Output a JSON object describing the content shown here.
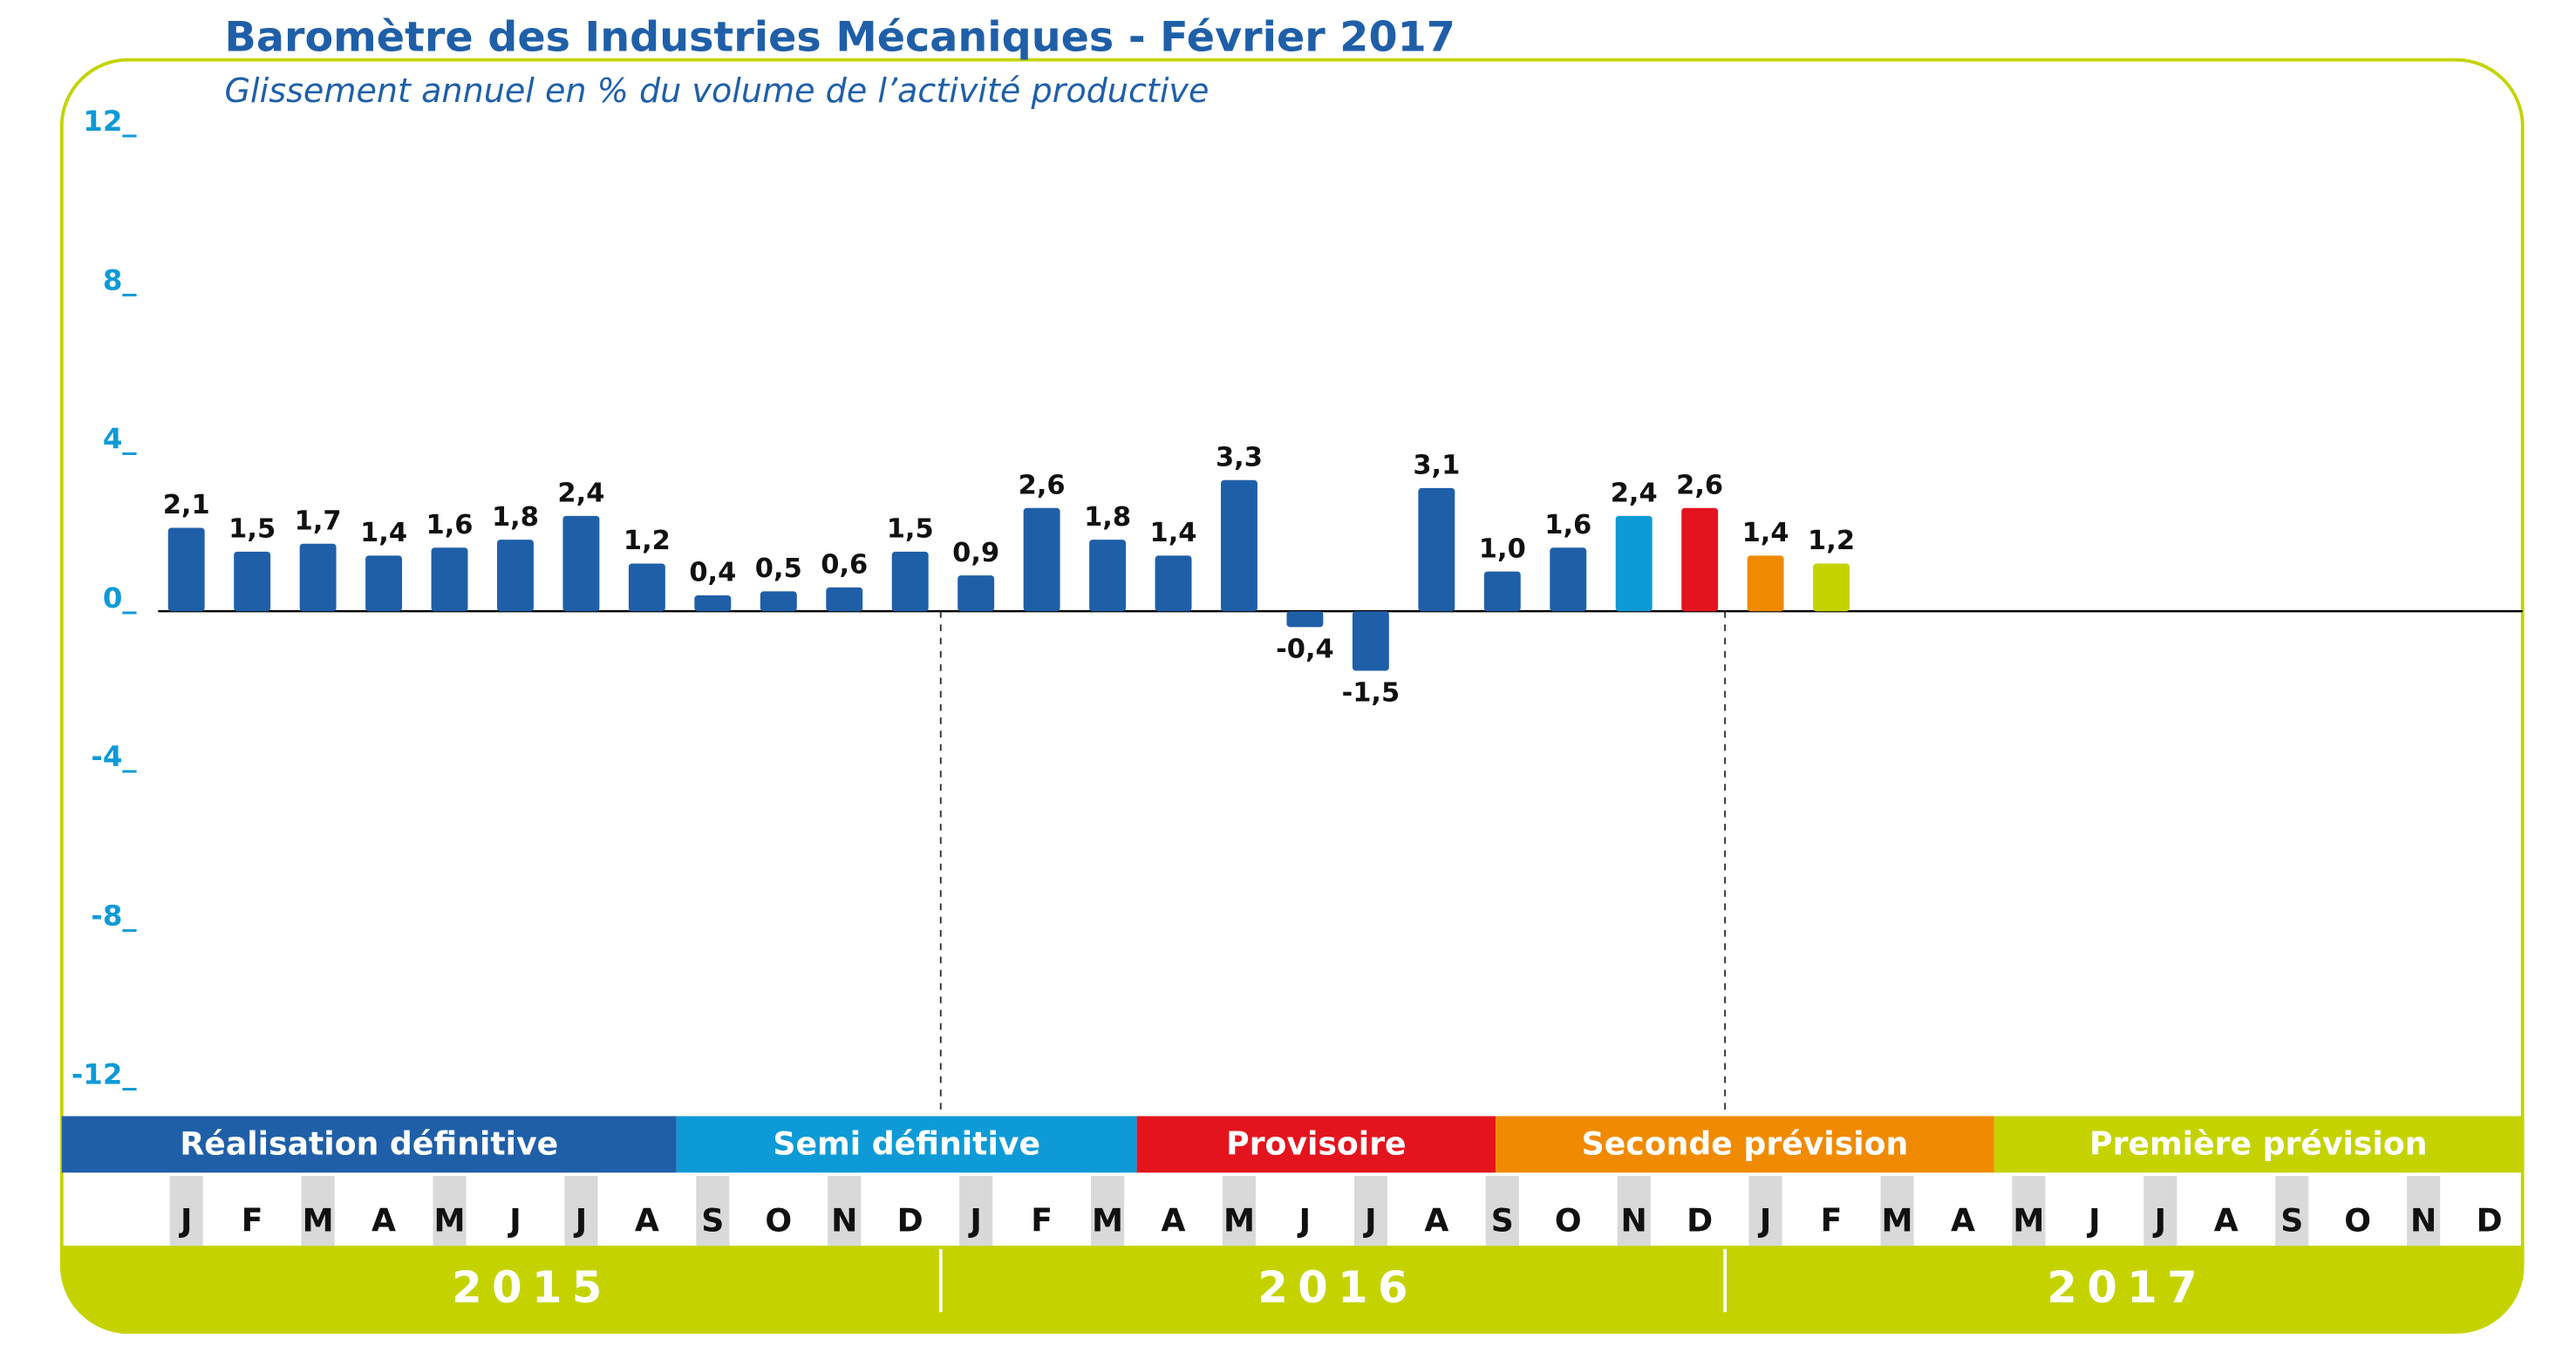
{
  "chart_data": {
    "type": "bar",
    "title": "Baromètre des Industries Mécaniques - Février 2017",
    "subtitle": "Glissement annuel en % du volume de l’activité productive",
    "categories": [
      "J",
      "F",
      "M",
      "A",
      "M",
      "J",
      "J",
      "A",
      "S",
      "O",
      "N",
      "D",
      "J",
      "F",
      "M",
      "A",
      "M",
      "J",
      "J",
      "A",
      "S",
      "O",
      "N",
      "D",
      "J",
      "F",
      "M",
      "A",
      "M",
      "J",
      "J",
      "A",
      "S",
      "O",
      "N",
      "D"
    ],
    "values": [
      2.1,
      1.5,
      1.7,
      1.4,
      1.6,
      1.8,
      2.4,
      1.2,
      0.4,
      0.5,
      0.6,
      1.5,
      0.9,
      2.6,
      1.8,
      1.4,
      3.3,
      -0.4,
      -1.5,
      3.1,
      1.0,
      1.6,
      2.4,
      2.6,
      1.4,
      1.2,
      null,
      null,
      null,
      null,
      null,
      null,
      null,
      null,
      null,
      null
    ],
    "value_labels": [
      "2,1",
      "1,5",
      "1,7",
      "1,4",
      "1,6",
      "1,8",
      "2,4",
      "1,2",
      "0,4",
      "0,5",
      "0,6",
      "1,5",
      "0,9",
      "2,6",
      "1,8",
      "1,4",
      "3,3",
      "-0,4",
      "-1,5",
      "3,1",
      "1,0",
      "1,6",
      "2,4",
      "2,6",
      "1,4",
      "1,2",
      null,
      null,
      null,
      null,
      null,
      null,
      null,
      null,
      null,
      null
    ],
    "colors": [
      "#1f5fa8",
      "#1f5fa8",
      "#1f5fa8",
      "#1f5fa8",
      "#1f5fa8",
      "#1f5fa8",
      "#1f5fa8",
      "#1f5fa8",
      "#1f5fa8",
      "#1f5fa8",
      "#1f5fa8",
      "#1f5fa8",
      "#1f5fa8",
      "#1f5fa8",
      "#1f5fa8",
      "#1f5fa8",
      "#1f5fa8",
      "#1f5fa8",
      "#1f5fa8",
      "#1f5fa8",
      "#1f5fa8",
      "#1f5fa8",
      "#0e9ad6",
      "#e3141e",
      "#f08a00",
      "#c4d300",
      null,
      null,
      null,
      null,
      null,
      null,
      null,
      null,
      null,
      null
    ],
    "ylim": [
      -12,
      12
    ],
    "yticks": [
      {
        "value": 12,
        "label": "12_"
      },
      {
        "value": 8,
        "label": "8_"
      },
      {
        "value": 4,
        "label": "4_"
      },
      {
        "value": 0,
        "label": "0_"
      },
      {
        "value": -4,
        "label": "-4_"
      },
      {
        "value": -8,
        "label": "-8_"
      },
      {
        "value": -12,
        "label": "-12_"
      }
    ],
    "phases": [
      {
        "name": "Réalisation définitive",
        "color": "#1f5fa8"
      },
      {
        "name": "Semi définitive",
        "color": "#0e9ad6"
      },
      {
        "name": "Provisoire",
        "color": "#e3141e"
      },
      {
        "name": "Seconde prévision",
        "color": "#f08a00"
      },
      {
        "name": "Première prévision",
        "color": "#c4d300"
      }
    ],
    "years": [
      "2015",
      "2016",
      "2017"
    ]
  }
}
